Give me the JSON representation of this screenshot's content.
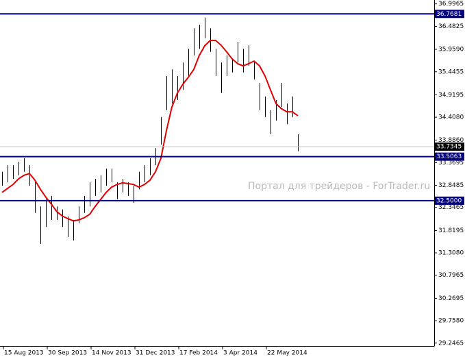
{
  "chart_data": {
    "type": "hl_bars",
    "bar_color": "#000000",
    "high": [
      33.16,
      33.31,
      33.31,
      33.39,
      33.47,
      33.31,
      32.92,
      32.37,
      32.53,
      32.61,
      32.37,
      32.3,
      32.14,
      32.06,
      32.37,
      32.61,
      32.92,
      33.0,
      33.08,
      33.23,
      33.23,
      32.92,
      33.0,
      32.92,
      32.84,
      33.16,
      33.31,
      33.47,
      33.7,
      34.41,
      35.35,
      35.5,
      35.35,
      35.66,
      35.97,
      36.44,
      36.52,
      36.68,
      36.44,
      35.97,
      35.66,
      35.82,
      35.74,
      36.13,
      35.97,
      36.05,
      35.66,
      35.19,
      34.88,
      34.57,
      34.8,
      35.19,
      34.72,
      34.88,
      34.02
    ],
    "low": [
      32.84,
      32.92,
      33.0,
      33.08,
      33.16,
      32.84,
      32.22,
      31.51,
      31.9,
      32.06,
      32.06,
      31.9,
      31.67,
      31.59,
      31.98,
      32.22,
      32.37,
      32.61,
      32.69,
      32.84,
      32.92,
      32.53,
      32.69,
      32.61,
      32.45,
      32.76,
      32.92,
      33.08,
      33.31,
      33.78,
      34.57,
      34.72,
      34.8,
      35.03,
      35.35,
      35.82,
      35.97,
      36.21,
      35.9,
      35.35,
      34.96,
      35.35,
      35.43,
      35.66,
      35.43,
      35.58,
      35.27,
      34.57,
      34.41,
      34.02,
      34.33,
      34.64,
      34.25,
      34.41,
      33.63
    ],
    "ma": {
      "color": "#e00000",
      "values": [
        32.69,
        32.78,
        32.87,
        33.0,
        33.08,
        33.12,
        32.97,
        32.76,
        32.58,
        32.42,
        32.25,
        32.15,
        32.09,
        32.04,
        32.06,
        32.11,
        32.19,
        32.37,
        32.53,
        32.69,
        32.81,
        32.87,
        32.91,
        32.89,
        32.87,
        32.81,
        32.87,
        32.97,
        33.16,
        33.47,
        34.1,
        34.64,
        34.96,
        35.16,
        35.32,
        35.5,
        35.82,
        36.04,
        36.16,
        36.16,
        36.05,
        35.9,
        35.74,
        35.63,
        35.58,
        35.63,
        35.69,
        35.58,
        35.35,
        35.03,
        34.72,
        34.6,
        34.53,
        34.53,
        34.44
      ]
    },
    "levels": [
      {
        "value": 36.7681,
        "label": "36.7681",
        "color": "#000080"
      },
      {
        "value": 33.5063,
        "label": "33.5063",
        "color": "#000080"
      },
      {
        "value": 32.5,
        "label": "32.5000",
        "color": "#000080"
      }
    ],
    "price": {
      "value": 33.7345,
      "label": "33.7345",
      "color": "#c0c0c0"
    },
    "watermark": "Портал для трейдеров - ForTrader.ru",
    "xlim": [
      -0.375,
      78.875
    ],
    "xticks": [
      {
        "value": 0.25,
        "label": "15 Aug 2013"
      },
      {
        "value": 8.25,
        "label": "30 Sep 2013"
      },
      {
        "value": 16.25,
        "label": "14 Nov 2013"
      },
      {
        "value": 24.25,
        "label": "31 Dec 2013"
      },
      {
        "value": 32.25,
        "label": "17 Feb 2014"
      },
      {
        "value": 40.25,
        "label": "3 Apr 2014"
      },
      {
        "value": 48.25,
        "label": "22 May 2014"
      }
    ],
    "ylim": [
      29.18,
      37.07
    ],
    "yticks": [
      36.9965,
      36.4825,
      {
        "value": 35.959,
        "label": "35.9590"
      },
      35.4455,
      34.9195,
      {
        "value": 34.408,
        "label": "34.4080"
      },
      {
        "value": 33.886,
        "label": "33.8860"
      },
      33.3695,
      32.8485,
      32.3465,
      31.8195,
      {
        "value": 31.308,
        "label": "31.3080"
      },
      30.7965,
      30.2695,
      {
        "value": 29.758,
        "label": "29.7580"
      },
      29.2465
    ]
  }
}
